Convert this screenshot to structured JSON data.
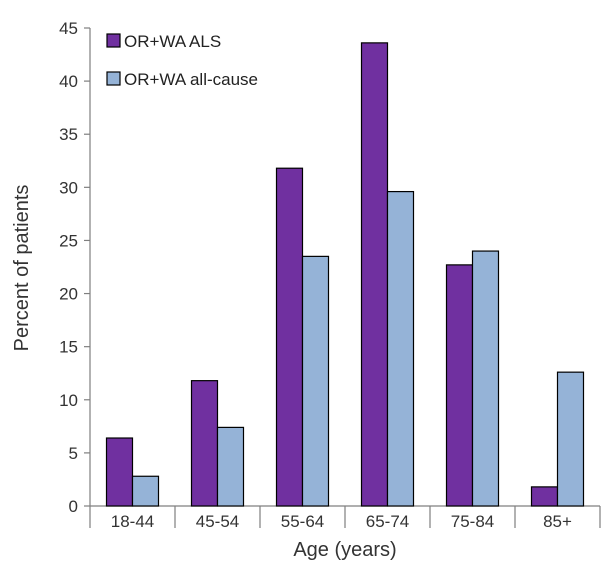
{
  "chart_data": {
    "type": "bar",
    "title": "",
    "xlabel": "Age (years)",
    "ylabel": "Percent of patients",
    "categories": [
      "18-44",
      "45-54",
      "55-64",
      "65-74",
      "75-84",
      "85+"
    ],
    "series": [
      {
        "name": "OR+WA ALS",
        "color": "#7030a0",
        "values": [
          6.4,
          11.8,
          31.8,
          43.6,
          22.7,
          1.8
        ]
      },
      {
        "name": "OR+WA all-cause",
        "color": "#95b3d7",
        "values": [
          2.8,
          7.4,
          23.5,
          29.6,
          24.0,
          12.6
        ]
      }
    ],
    "ylim": [
      0,
      45
    ],
    "yticks": [
      "0",
      "5",
      "10",
      "15",
      "20",
      "25",
      "30",
      "35",
      "40",
      "45"
    ],
    "grid": false,
    "legend_position": "top-left"
  }
}
